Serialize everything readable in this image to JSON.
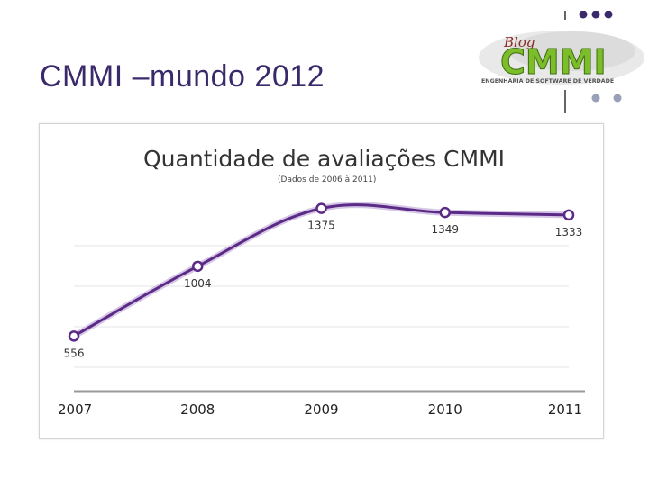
{
  "slide": {
    "title": "CMMI –mundo 2012"
  },
  "logo": {
    "blog_text": "Blog",
    "brand_text": "CMMI",
    "tagline": "ENGENHARIA DE SOFTWARE DE VERDADE",
    "colors": {
      "brand_green": "#7cbd2a",
      "gray": "#8a8a8a",
      "dots": "#3b2a6b"
    }
  },
  "chart_data": {
    "type": "line",
    "title": "Quantidade de avaliações CMMI",
    "subtitle": "(Dados de 2006 à 2011)",
    "x": [
      "2007",
      "2008",
      "2009",
      "2010",
      "2011"
    ],
    "series": [
      {
        "values": [
          556,
          1004,
          1375,
          1349,
          1333
        ]
      }
    ],
    "ylim": [
      200,
      1500
    ],
    "grid": true,
    "legend": "none",
    "colors": {
      "line": "#5b2a86",
      "marker_fill": "#ffffff",
      "grid": "#e6e6e6"
    }
  }
}
